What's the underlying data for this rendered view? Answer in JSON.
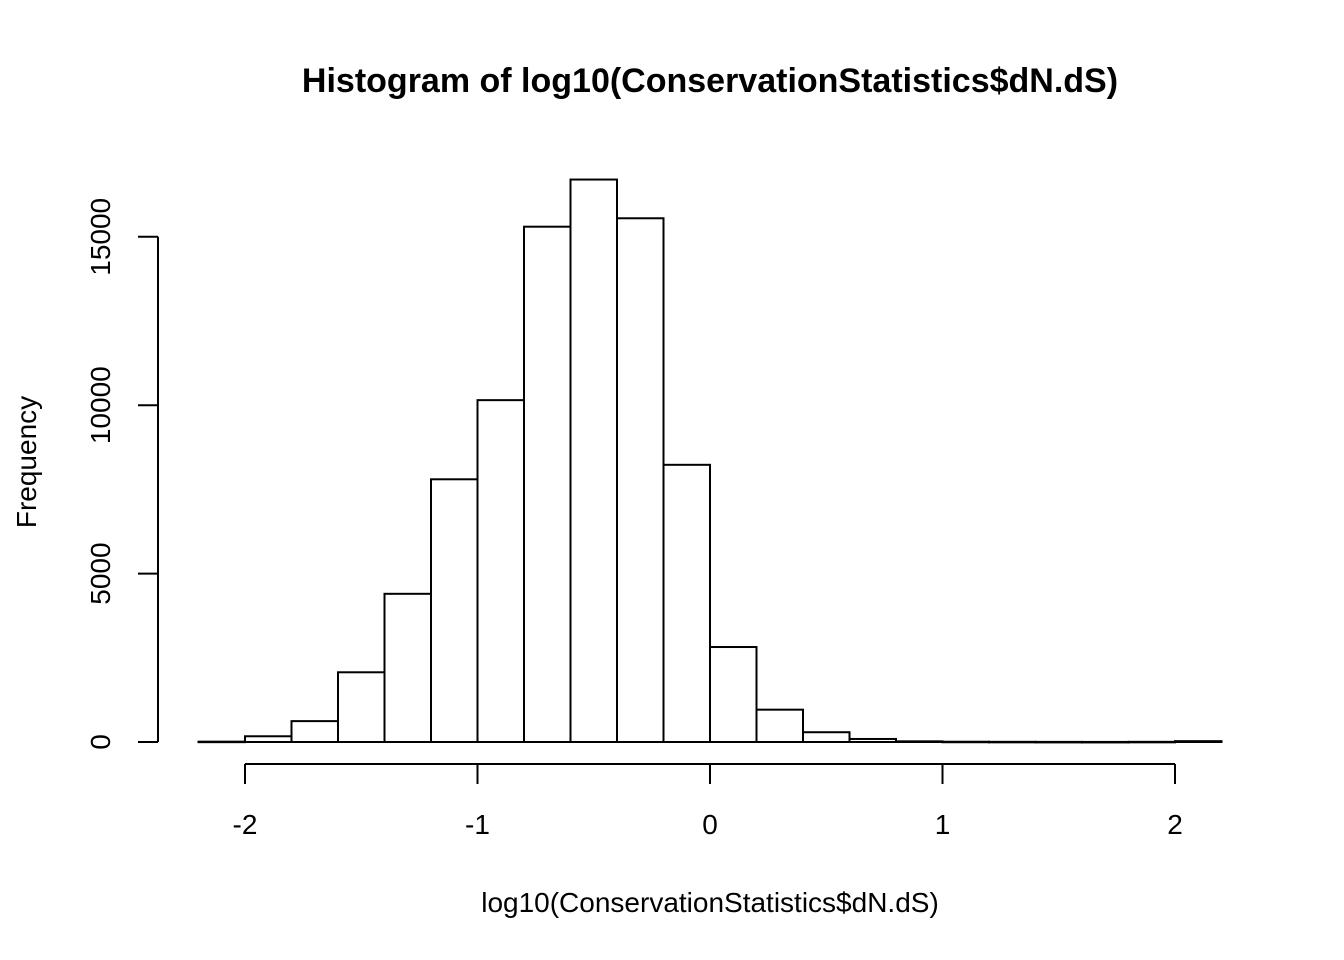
{
  "chart_data": {
    "type": "bar",
    "title": "Histogram of log10(ConservationStatistics$dN.dS)",
    "xlabel": "log10(ConservationStatistics$dN.dS)",
    "ylabel": "Frequency",
    "xlim": [
      -2.2,
      2.2
    ],
    "ylim": [
      0,
      16800
    ],
    "bin_width": 0.2,
    "x_ticks": [
      -2,
      -1,
      0,
      1,
      2
    ],
    "x_tick_labels": [
      "-2",
      "-1",
      "0",
      "1",
      "2"
    ],
    "y_ticks": [
      0,
      5000,
      10000,
      15000
    ],
    "y_tick_labels": [
      "0",
      "5000",
      "10000",
      "15000"
    ],
    "bins": [
      {
        "start": -2.2,
        "end": -2.0,
        "count": 10
      },
      {
        "start": -2.0,
        "end": -1.8,
        "count": 170
      },
      {
        "start": -1.8,
        "end": -1.6,
        "count": 620
      },
      {
        "start": -1.6,
        "end": -1.4,
        "count": 2070
      },
      {
        "start": -1.4,
        "end": -1.2,
        "count": 4400
      },
      {
        "start": -1.2,
        "end": -1.0,
        "count": 7800
      },
      {
        "start": -1.0,
        "end": -0.8,
        "count": 10150
      },
      {
        "start": -0.8,
        "end": -0.6,
        "count": 15300
      },
      {
        "start": -0.6,
        "end": -0.4,
        "count": 16700
      },
      {
        "start": -0.4,
        "end": -0.2,
        "count": 15550
      },
      {
        "start": -0.2,
        "end": 0.0,
        "count": 8230
      },
      {
        "start": 0.0,
        "end": 0.2,
        "count": 2820
      },
      {
        "start": 0.2,
        "end": 0.4,
        "count": 960
      },
      {
        "start": 0.4,
        "end": 0.6,
        "count": 290
      },
      {
        "start": 0.6,
        "end": 0.8,
        "count": 90
      },
      {
        "start": 0.8,
        "end": 1.0,
        "count": 20
      },
      {
        "start": 1.0,
        "end": 1.2,
        "count": 8
      },
      {
        "start": 1.2,
        "end": 1.4,
        "count": 5
      },
      {
        "start": 1.4,
        "end": 1.6,
        "count": 3
      },
      {
        "start": 1.6,
        "end": 1.8,
        "count": 2
      },
      {
        "start": 1.8,
        "end": 2.0,
        "count": 5
      },
      {
        "start": 2.0,
        "end": 2.2,
        "count": 25
      }
    ],
    "grid": false,
    "legend": "none"
  }
}
